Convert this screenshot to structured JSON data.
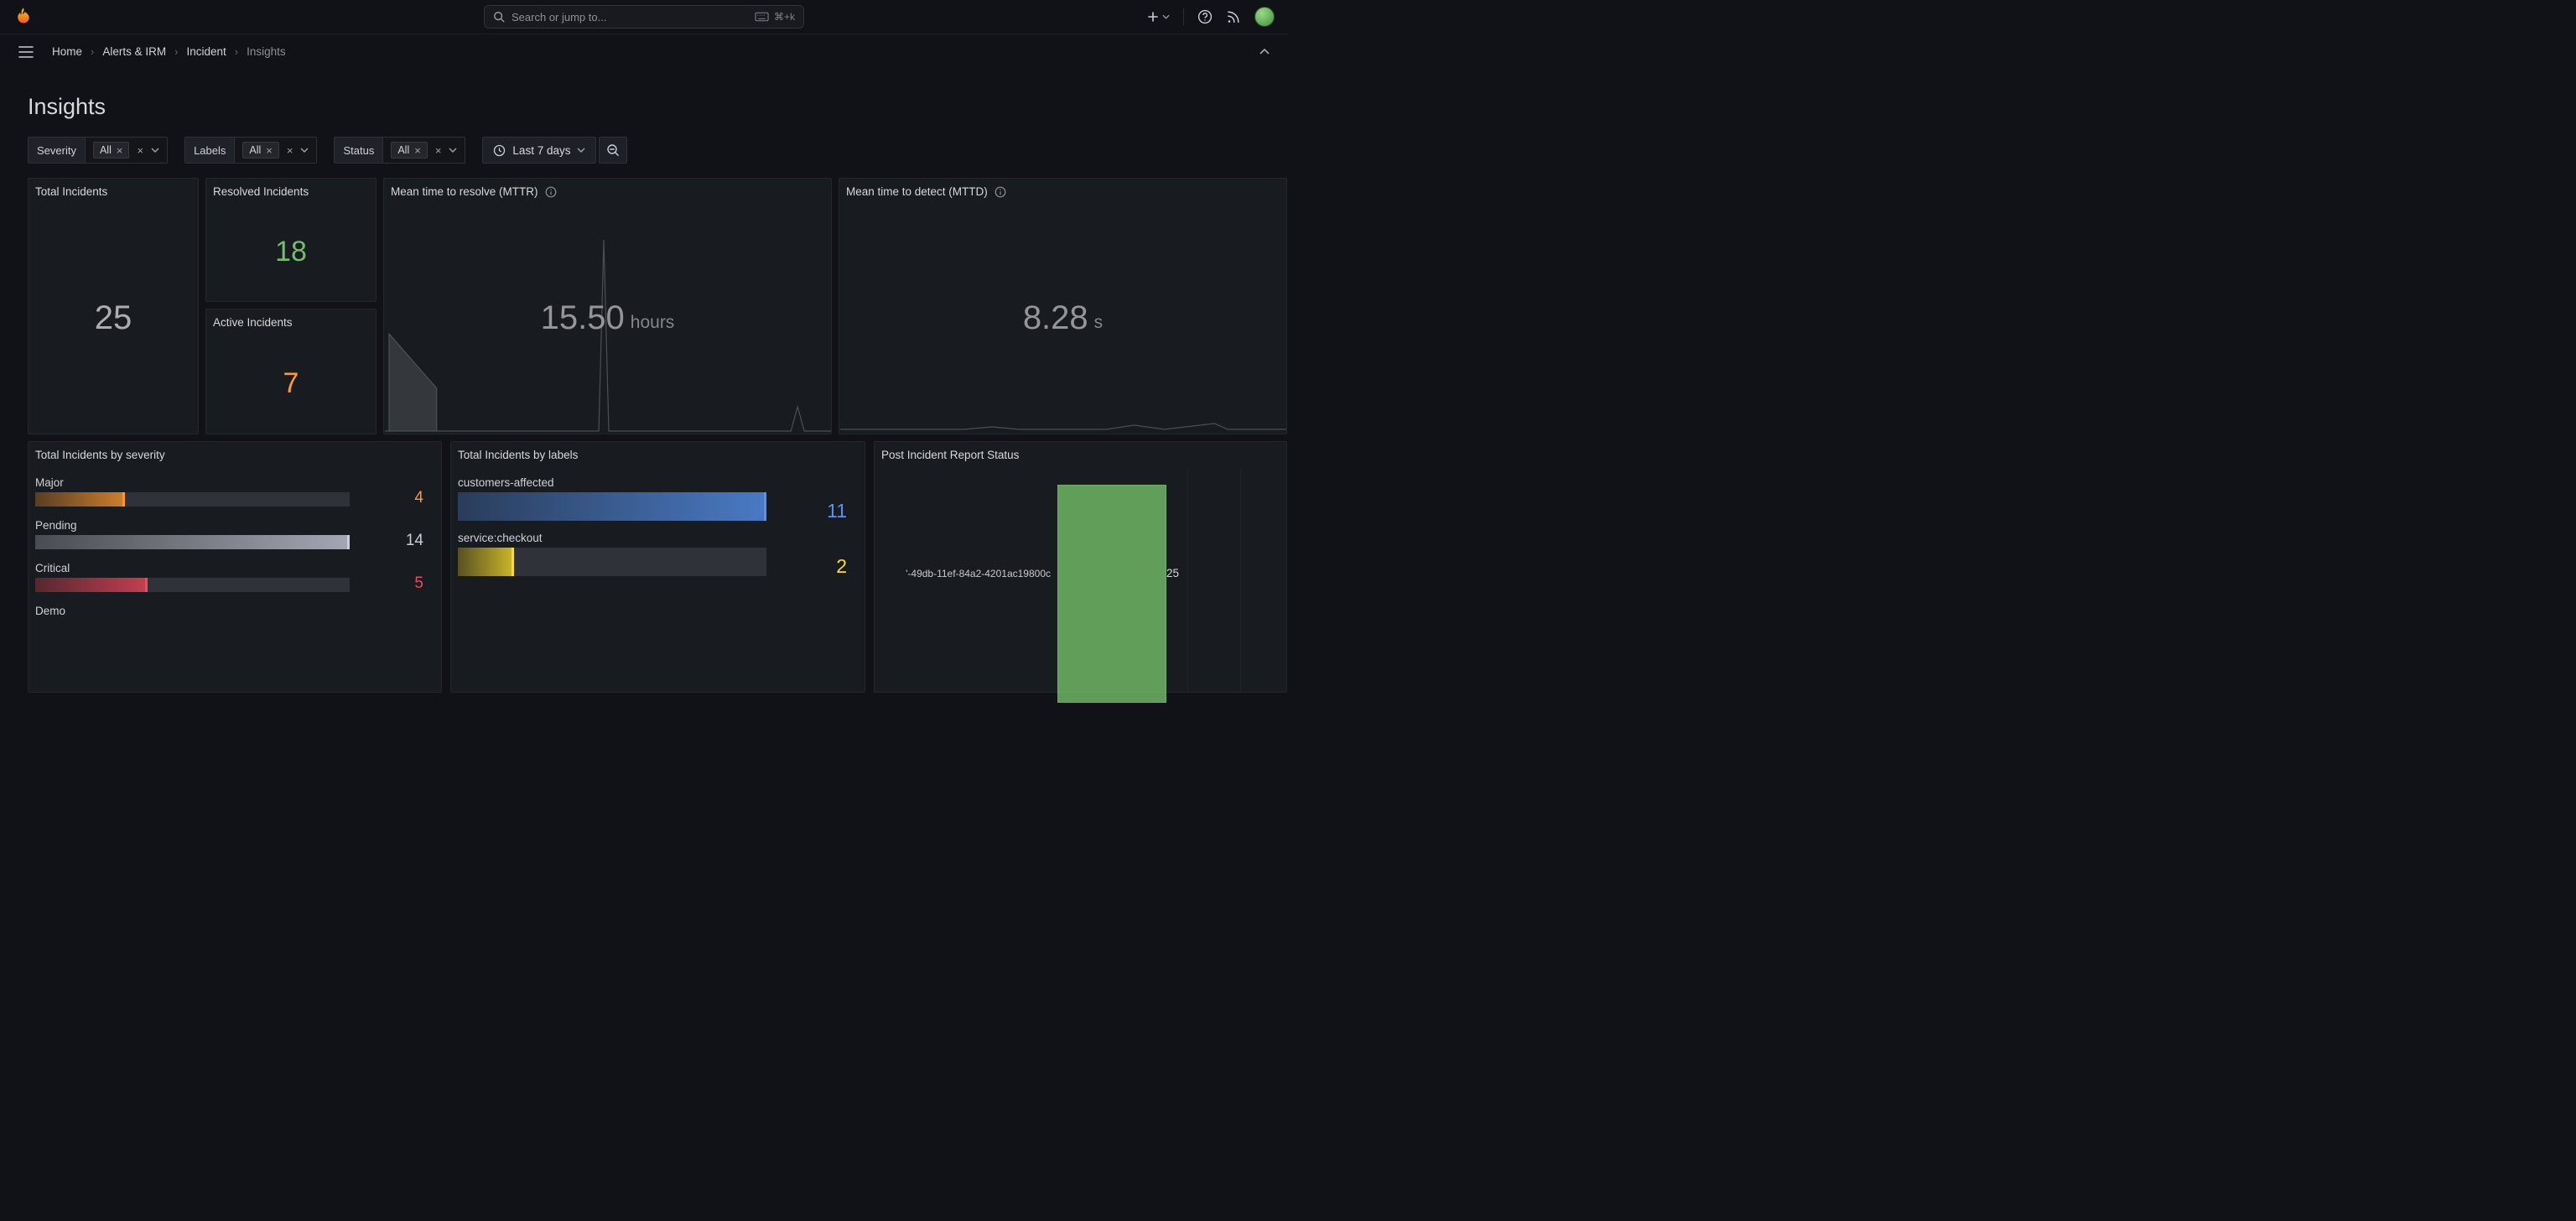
{
  "topbar": {
    "search_placeholder": "Search or jump to...",
    "shortcut": "⌘+k"
  },
  "icons": {
    "close": "×"
  },
  "breadcrumb": {
    "separator": "›",
    "items": [
      "Home",
      "Alerts & IRM",
      "Incident",
      "Insights"
    ]
  },
  "page": {
    "title": "Insights"
  },
  "filters": [
    {
      "label": "Severity",
      "chip": "All"
    },
    {
      "label": "Labels",
      "chip": "All"
    },
    {
      "label": "Status",
      "chip": "All"
    }
  ],
  "time_picker": {
    "range": "Last 7 days"
  },
  "panels": {
    "total": {
      "title": "Total Incidents",
      "value": "25"
    },
    "resolved": {
      "title": "Resolved Incidents",
      "value": "18",
      "color": "#73BF69"
    },
    "active": {
      "title": "Active Incidents",
      "value": "7",
      "color": "#FF9830"
    },
    "mttr": {
      "title": "Mean time to resolve (MTTR)",
      "value": "15.50",
      "unit": "hours",
      "sparkline": {
        "area_points": [
          [
            5,
            117
          ],
          [
            62,
            182
          ],
          [
            62,
            233
          ],
          [
            5,
            233
          ]
        ],
        "line_points": [
          [
            0,
            233
          ],
          [
            256,
            233
          ],
          [
            262,
            5
          ],
          [
            268,
            233
          ],
          [
            486,
            233
          ],
          [
            494,
            204
          ],
          [
            502,
            233
          ],
          [
            534,
            233
          ]
        ]
      }
    },
    "mttd": {
      "title": "Mean time to detect (MTTD)",
      "value": "8.28",
      "unit": "s",
      "sparkline": {
        "line_points": [
          [
            0,
            16
          ],
          [
            148,
            16
          ],
          [
            182,
            13
          ],
          [
            214,
            16
          ],
          [
            318,
            16
          ],
          [
            352,
            11
          ],
          [
            388,
            16
          ],
          [
            448,
            9
          ],
          [
            464,
            16
          ],
          [
            534,
            16
          ]
        ]
      }
    },
    "by_severity": {
      "title": "Total Incidents by severity",
      "max": 14,
      "bars": [
        {
          "label": "Major",
          "value": "4",
          "pct": 28.6,
          "color": "#FF9830"
        },
        {
          "label": "Pending",
          "value": "14",
          "pct": 100,
          "color": "#CCCCDC"
        },
        {
          "label": "Critical",
          "value": "5",
          "pct": 35.7,
          "color": "#F2495C"
        },
        {
          "label": "Demo"
        }
      ]
    },
    "by_labels": {
      "title": "Total Incidents by labels",
      "max": 11,
      "bars": [
        {
          "label": "customers-affected",
          "value": "11",
          "pct": 100,
          "color": "#5794F2"
        },
        {
          "label": "service:checkout",
          "value": "2",
          "pct": 18.2,
          "color": "#FADE2A"
        }
      ]
    },
    "report": {
      "title": "Post Incident Report Status",
      "category": "'-49db-11ef-84a2-4201ac19800c",
      "value": "25",
      "bar_color": "#73BF69"
    }
  },
  "chart_data": [
    {
      "type": "stat",
      "title": "Total Incidents",
      "value": 25
    },
    {
      "type": "stat",
      "title": "Resolved Incidents",
      "value": 18
    },
    {
      "type": "stat",
      "title": "Active Incidents",
      "value": 7
    },
    {
      "type": "stat",
      "title": "Mean time to resolve (MTTR)",
      "value": 15.5,
      "unit": "hours"
    },
    {
      "type": "stat",
      "title": "Mean time to detect (MTTD)",
      "value": 8.28,
      "unit": "s"
    },
    {
      "type": "bar",
      "orientation": "horizontal",
      "title": "Total Incidents by severity",
      "categories": [
        "Major",
        "Pending",
        "Critical",
        "Demo"
      ],
      "values": [
        4,
        14,
        5,
        null
      ],
      "xlim": [
        0,
        14
      ]
    },
    {
      "type": "bar",
      "orientation": "horizontal",
      "title": "Total Incidents by labels",
      "categories": [
        "customers-affected",
        "service:checkout"
      ],
      "values": [
        11,
        2
      ],
      "xlim": [
        0,
        11
      ]
    },
    {
      "type": "bar",
      "orientation": "vertical",
      "title": "Post Incident Report Status",
      "categories": [
        "'-49db-11ef-84a2-4201ac19800c"
      ],
      "values": [
        25
      ]
    }
  ]
}
